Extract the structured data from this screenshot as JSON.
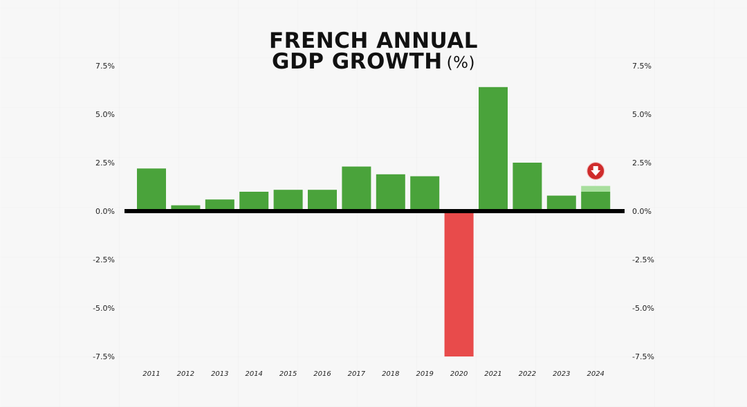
{
  "chart_data": {
    "type": "bar",
    "title_lines": [
      "FRENCH ANNUAL",
      "GDP GROWTH"
    ],
    "title_unit": "(%)",
    "categories": [
      "2011",
      "2012",
      "2013",
      "2014",
      "2015",
      "2016",
      "2017",
      "2018",
      "2019",
      "2020",
      "2021",
      "2022",
      "2023",
      "2024"
    ],
    "values": [
      2.2,
      0.3,
      0.6,
      1.0,
      1.1,
      1.1,
      2.3,
      1.9,
      1.8,
      -7.5,
      6.4,
      2.5,
      0.8,
      1.0
    ],
    "forecast_highlight": {
      "category": "2024",
      "value": 1.3
    },
    "yticks": [
      "7.5%",
      "5.0%",
      "2.5%",
      "0.0%",
      "-2.5%",
      "-5.0%",
      "-7.5%"
    ],
    "ytick_values": [
      7.5,
      5.0,
      2.5,
      0.0,
      -2.5,
      -5.0,
      -7.5
    ],
    "ylim": [
      -7.5,
      7.5
    ],
    "xlabel": "",
    "ylabel": "",
    "grid": false,
    "colors": {
      "positive": "#4aa33b",
      "negative": "#e84b4b",
      "forecast": "#a9df9e",
      "baseline": "#000000",
      "marker": "#cf2b2b"
    },
    "annotation": {
      "category": "2024",
      "icon": "down-arrow-icon"
    }
  }
}
